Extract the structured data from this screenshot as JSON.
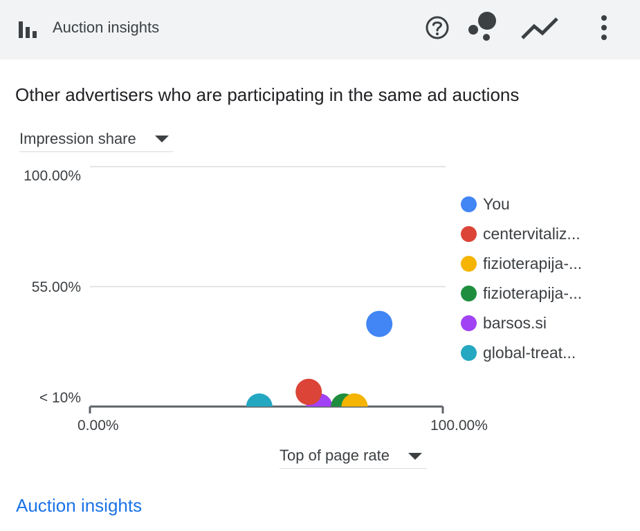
{
  "header": {
    "title": "Auction insights",
    "icons": [
      "bar-chart-icon",
      "help-icon",
      "bubble-chart-icon",
      "trend-line-icon",
      "more-vert-icon"
    ]
  },
  "subtitle": "Other advertisers who are participating in the same ad auctions",
  "y_selector": {
    "label": "Impression share"
  },
  "x_selector": {
    "label": "Top of page rate"
  },
  "footer_link": "Auction insights",
  "chart_data": {
    "type": "scatter",
    "xlabel": "Top of page rate",
    "ylabel": "Impression share",
    "xlim": [
      0,
      100
    ],
    "ylim": [
      10,
      100
    ],
    "y_ticks": [
      {
        "value": 100,
        "label": "100.00%"
      },
      {
        "value": 55,
        "label": "55.00%"
      },
      {
        "value": 10,
        "label": "< 10%"
      }
    ],
    "x_ticks": [
      {
        "value": 0,
        "label": "0.00%"
      },
      {
        "value": 100,
        "label": "100.00%"
      }
    ],
    "grid": true,
    "legend_position": "right",
    "series": [
      {
        "name": "You",
        "color": "#4285f4",
        "x": 82,
        "y": 41
      },
      {
        "name": "centervitaliz...",
        "color": "#db4437",
        "x": 62,
        "y": 15.5
      },
      {
        "name": "fizioterapija-...",
        "color": "#f4b400",
        "x": 75,
        "y": 10
      },
      {
        "name": "fizioterapija-...",
        "color": "#1e8e3e",
        "x": 72,
        "y": 10
      },
      {
        "name": "barsos.si",
        "color": "#a142f4",
        "x": 65,
        "y": 10
      },
      {
        "name": "global-treat...",
        "color": "#24a7c1",
        "x": 48,
        "y": 10
      }
    ]
  }
}
